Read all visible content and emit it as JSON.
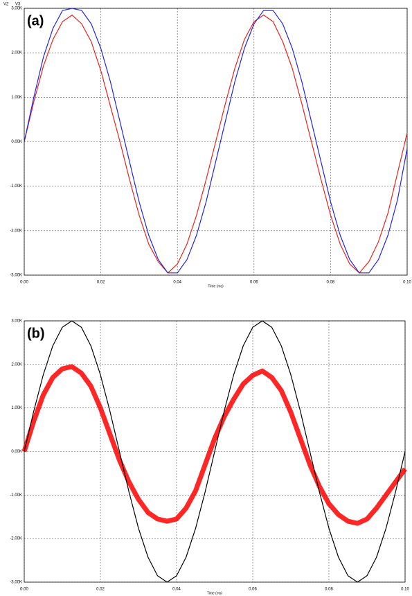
{
  "chart_data": [
    {
      "type": "line",
      "annotation": "(a)",
      "x_label": "Time (ms)",
      "legend": "top-left",
      "grid": true,
      "x": [
        0,
        0.0025,
        0.005,
        0.0075,
        0.01,
        0.0125,
        0.015,
        0.0175,
        0.02,
        0.0225,
        0.025,
        0.0275,
        0.03,
        0.0325,
        0.035,
        0.0375,
        0.04,
        0.0425,
        0.045,
        0.0475,
        0.05,
        0.0525,
        0.055,
        0.0575,
        0.06,
        0.0625,
        0.065,
        0.0675,
        0.07,
        0.0725,
        0.075,
        0.0775,
        0.08,
        0.0825,
        0.085,
        0.0875,
        0.09,
        0.0925,
        0.095,
        0.0975,
        0.1
      ],
      "series": [
        {
          "name": "V2",
          "color": "#e8231e",
          "values": [
            0,
            900,
            1700,
            2300,
            2700,
            2850,
            2650,
            2250,
            1600,
            800,
            0,
            -850,
            -1650,
            -2300,
            -2700,
            -2950,
            -2750,
            -2300,
            -1650,
            -850,
            0,
            850,
            1650,
            2300,
            2700,
            2850,
            2700,
            2250,
            1650,
            850,
            0,
            -850,
            -1650,
            -2300,
            -2750,
            -2950,
            -2700,
            -2250,
            -1600,
            -700,
            200
          ]
        },
        {
          "name": "V3",
          "color": "#2222e0",
          "values": [
            0,
            1000,
            1900,
            2550,
            2950,
            3000,
            2950,
            2650,
            2100,
            1350,
            450,
            -450,
            -1350,
            -2100,
            -2650,
            -2950,
            -2950,
            -2650,
            -2100,
            -1350,
            -450,
            450,
            1350,
            2100,
            2650,
            2950,
            2950,
            2650,
            2100,
            1350,
            450,
            -450,
            -1350,
            -2100,
            -2650,
            -2950,
            -2950,
            -2650,
            -2100,
            -1300,
            -150
          ]
        }
      ],
      "xlim": [
        0,
        0.1
      ],
      "ylim": [
        -3000,
        3000
      ],
      "xticks": [
        {
          "value": 0,
          "label": "0.00"
        },
        {
          "value": 0.02,
          "label": "0.02"
        },
        {
          "value": 0.04,
          "label": "0.04"
        },
        {
          "value": 0.06,
          "label": "0.06"
        },
        {
          "value": 0.08,
          "label": "0.08"
        },
        {
          "value": 0.1,
          "label": "0.10"
        }
      ],
      "yticks": [
        {
          "value": -3000,
          "label": "-3.00K"
        },
        {
          "value": -2000,
          "label": "-2.00K"
        },
        {
          "value": -1000,
          "label": "-1.00K"
        },
        {
          "value": 0,
          "label": "0.00K"
        },
        {
          "value": 1000,
          "label": "1.00K"
        },
        {
          "value": 2000,
          "label": "2.00K"
        },
        {
          "value": 3000,
          "label": "3.00K"
        }
      ]
    },
    {
      "type": "line",
      "annotation": "(b)",
      "x_label": "Time (ms)",
      "grid": true,
      "x": [
        0,
        0.0025,
        0.005,
        0.0075,
        0.01,
        0.0125,
        0.015,
        0.0175,
        0.02,
        0.0225,
        0.025,
        0.0275,
        0.03,
        0.0325,
        0.035,
        0.0375,
        0.04,
        0.0425,
        0.045,
        0.0475,
        0.05,
        0.0525,
        0.055,
        0.0575,
        0.06,
        0.0625,
        0.065,
        0.0675,
        0.07,
        0.0725,
        0.075,
        0.0775,
        0.08,
        0.0825,
        0.085,
        0.0875,
        0.09,
        0.0925,
        0.095,
        0.0975,
        0.1
      ],
      "series": [
        {
          "color": "#ff0000",
          "values": [
            0,
            700,
            1300,
            1700,
            1900,
            1950,
            1800,
            1500,
            1000,
            400,
            -200,
            -700,
            -1100,
            -1400,
            -1550,
            -1600,
            -1550,
            -1300,
            -900,
            -300,
            300,
            800,
            1200,
            1550,
            1750,
            1850,
            1700,
            1400,
            900,
            300,
            -300,
            -800,
            -1200,
            -1450,
            -1600,
            -1650,
            -1550,
            -1300,
            -1000,
            -700,
            -400
          ]
        },
        {
          "color": "#000000",
          "values": [
            0,
            927,
            1763,
            2427,
            2853,
            3000,
            2853,
            2427,
            1763,
            927,
            0,
            -927,
            -1763,
            -2427,
            -2853,
            -3000,
            -2853,
            -2427,
            -1763,
            -927,
            0,
            927,
            1763,
            2427,
            2853,
            3000,
            2853,
            2427,
            1763,
            927,
            0,
            -927,
            -1763,
            -2427,
            -2853,
            -3000,
            -2853,
            -2427,
            -1763,
            -927,
            0
          ]
        }
      ],
      "xlim": [
        0,
        0.1
      ],
      "ylim": [
        -3000,
        3000
      ],
      "xticks": [
        {
          "value": 0,
          "label": "0.00"
        },
        {
          "value": 0.02,
          "label": "0.02"
        },
        {
          "value": 0.04,
          "label": "0.04"
        },
        {
          "value": 0.06,
          "label": "0.06"
        },
        {
          "value": 0.08,
          "label": "0.08"
        },
        {
          "value": 0.1,
          "label": "0.10"
        }
      ],
      "yticks": [
        {
          "value": -3000,
          "label": "-3.00K"
        },
        {
          "value": -2000,
          "label": "-2.00K"
        },
        {
          "value": -1000,
          "label": "-1.00K"
        },
        {
          "value": 0,
          "label": "0.00K"
        },
        {
          "value": 1000,
          "label": "1.00K"
        },
        {
          "value": 2000,
          "label": "2.00K"
        },
        {
          "value": 3000,
          "label": "3.00K"
        }
      ]
    }
  ]
}
